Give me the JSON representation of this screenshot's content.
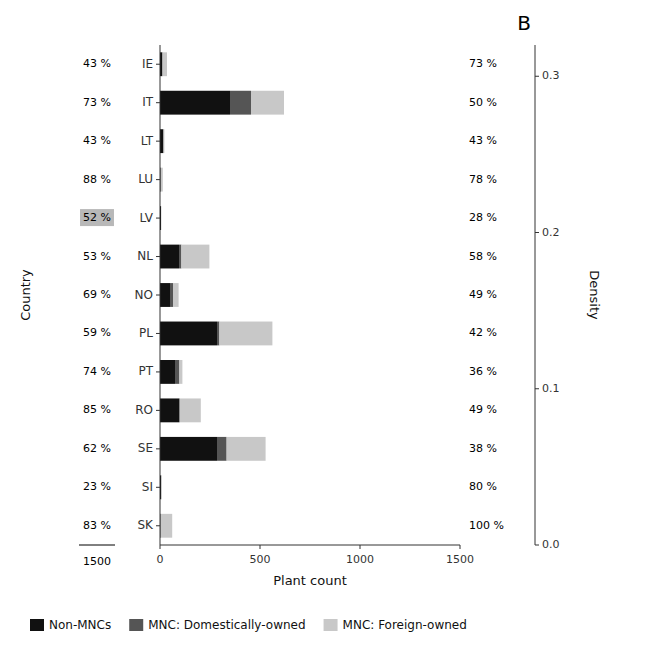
{
  "chart_data": {
    "type": "bar",
    "orientation": "horizontal",
    "stacked": true,
    "categories": [
      "IE",
      "IT",
      "LT",
      "LU",
      "LV",
      "NL",
      "NO",
      "PL",
      "PT",
      "RO",
      "SE",
      "SI",
      "SK"
    ],
    "series": [
      {
        "name": "Non-MNCs",
        "color": "#111111",
        "values": [
          10,
          350,
          15,
          3,
          5,
          95,
          50,
          285,
          75,
          95,
          285,
          5,
          3
        ]
      },
      {
        "name": "MNC: Domestically-owned",
        "color": "#555555",
        "values": [
          3,
          105,
          3,
          1,
          0,
          12,
          15,
          12,
          22,
          4,
          48,
          1,
          0
        ]
      },
      {
        "name": "MNC: Foreign-owned",
        "color": "#c8c8c8",
        "values": [
          22,
          165,
          4,
          10,
          2,
          140,
          28,
          265,
          15,
          105,
          195,
          4,
          58
        ]
      }
    ],
    "x_label": "Plant count",
    "y_label": "Country",
    "xlim": [
      0,
      1500
    ],
    "xticks": [
      0,
      500,
      1000,
      1500
    ],
    "y2lim": [
      0,
      0.32
    ],
    "y2ticks": [
      {
        "value": 0,
        "label": "0.0"
      },
      0.1,
      0.2,
      0.3
    ],
    "y2_label": "Density",
    "panel_label": "B",
    "left_axis_label": "1500",
    "annotations": [
      {
        "category": "IE",
        "side": "left",
        "text": "43 %"
      },
      {
        "category": "IT",
        "side": "left",
        "text": "73 %"
      },
      {
        "category": "LT",
        "side": "left",
        "text": "43 %"
      },
      {
        "category": "LU",
        "side": "left",
        "text": "88 %"
      },
      {
        "category": "LV",
        "side": "left",
        "text": "52 %",
        "color": "#b8b8b8"
      },
      {
        "category": "NL",
        "side": "left",
        "text": "53 %"
      },
      {
        "category": "NO",
        "side": "left",
        "text": "69 %"
      },
      {
        "category": "PL",
        "side": "left",
        "text": "59 %"
      },
      {
        "category": "PT",
        "side": "left",
        "text": "74 %"
      },
      {
        "category": "RO",
        "side": "left",
        "text": "85 %"
      },
      {
        "category": "SE",
        "side": "left",
        "text": "62 %"
      },
      {
        "category": "SI",
        "side": "left",
        "text": "23 %"
      },
      {
        "category": "SK",
        "side": "left",
        "text": "83 %"
      },
      {
        "category": "IE",
        "side": "right",
        "text": "73 %"
      },
      {
        "category": "IT",
        "side": "right",
        "text": "50 %"
      },
      {
        "category": "LT",
        "side": "right",
        "text": "43 %"
      },
      {
        "category": "LU",
        "side": "right",
        "text": "78 %"
      },
      {
        "category": "LV",
        "side": "right",
        "text": "28 %"
      },
      {
        "category": "NL",
        "side": "right",
        "text": "58 %"
      },
      {
        "category": "NO",
        "side": "right",
        "text": "49 %"
      },
      {
        "category": "PL",
        "side": "right",
        "text": "42 %"
      },
      {
        "category": "PT",
        "side": "right",
        "text": "36 %"
      },
      {
        "category": "RO",
        "side": "right",
        "text": "49 %"
      },
      {
        "category": "SE",
        "side": "right",
        "text": "38 %"
      },
      {
        "category": "SI",
        "side": "right",
        "text": "80 %"
      },
      {
        "category": "SK",
        "side": "right",
        "text": "100 %"
      }
    ],
    "grid": false,
    "legend": "bottom"
  }
}
